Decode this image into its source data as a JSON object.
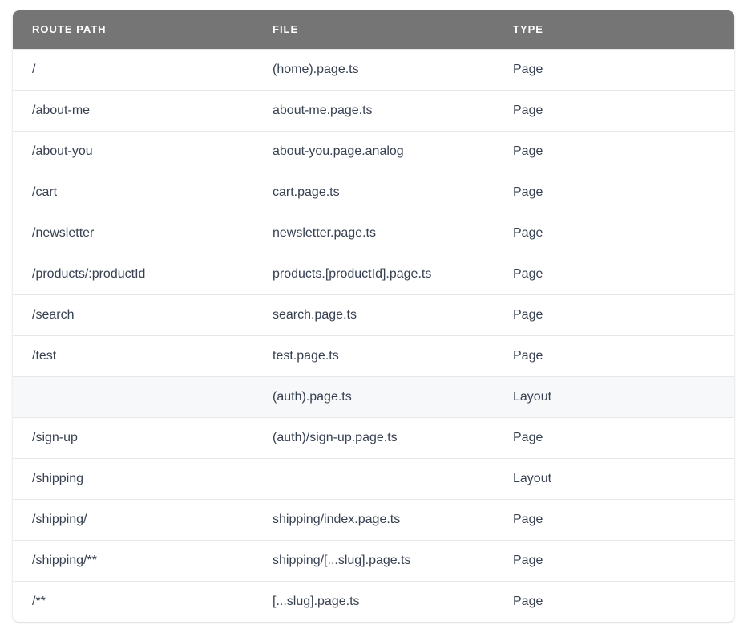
{
  "table": {
    "headers": [
      "ROUTE PATH",
      "FILE",
      "TYPE"
    ],
    "highlighted_row": 8,
    "rows": [
      {
        "route": "/",
        "file": "(home).page.ts",
        "type": "Page"
      },
      {
        "route": "/about-me",
        "file": "about-me.page.ts",
        "type": "Page"
      },
      {
        "route": "/about-you",
        "file": "about-you.page.analog",
        "type": "Page"
      },
      {
        "route": "/cart",
        "file": "cart.page.ts",
        "type": "Page"
      },
      {
        "route": "/newsletter",
        "file": "newsletter.page.ts",
        "type": "Page"
      },
      {
        "route": "/products/:productId",
        "file": "products.[productId].page.ts",
        "type": "Page"
      },
      {
        "route": "/search",
        "file": "search.page.ts",
        "type": "Page"
      },
      {
        "route": "/test",
        "file": "test.page.ts",
        "type": "Page"
      },
      {
        "route": "",
        "file": "(auth).page.ts",
        "type": "Layout"
      },
      {
        "route": "/sign-up",
        "file": "(auth)/sign-up.page.ts",
        "type": "Page"
      },
      {
        "route": "/shipping",
        "file": "",
        "type": "Layout"
      },
      {
        "route": "/shipping/",
        "file": "shipping/index.page.ts",
        "type": "Page"
      },
      {
        "route": "/shipping/**",
        "file": "shipping/[...slug].page.ts",
        "type": "Page"
      },
      {
        "route": "/**",
        "file": "[...slug].page.ts",
        "type": "Page"
      }
    ]
  }
}
